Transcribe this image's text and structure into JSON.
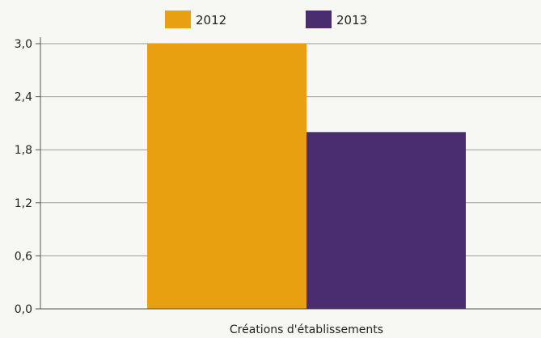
{
  "chart_data": {
    "type": "bar",
    "categories": [
      "Créations d'établissements"
    ],
    "series": [
      {
        "name": "2012",
        "values": [
          3.0
        ],
        "color": "#E8A010"
      },
      {
        "name": "2013",
        "values": [
          2.0
        ],
        "color": "#4A2C70"
      }
    ],
    "xlabel": "Créations d'établissements",
    "ylim": [
      0,
      3.0
    ],
    "yticks": [
      "0,0",
      "0,6",
      "1,2",
      "1,8",
      "2,4",
      "3,0"
    ],
    "grid": true,
    "legend_position": "top"
  }
}
